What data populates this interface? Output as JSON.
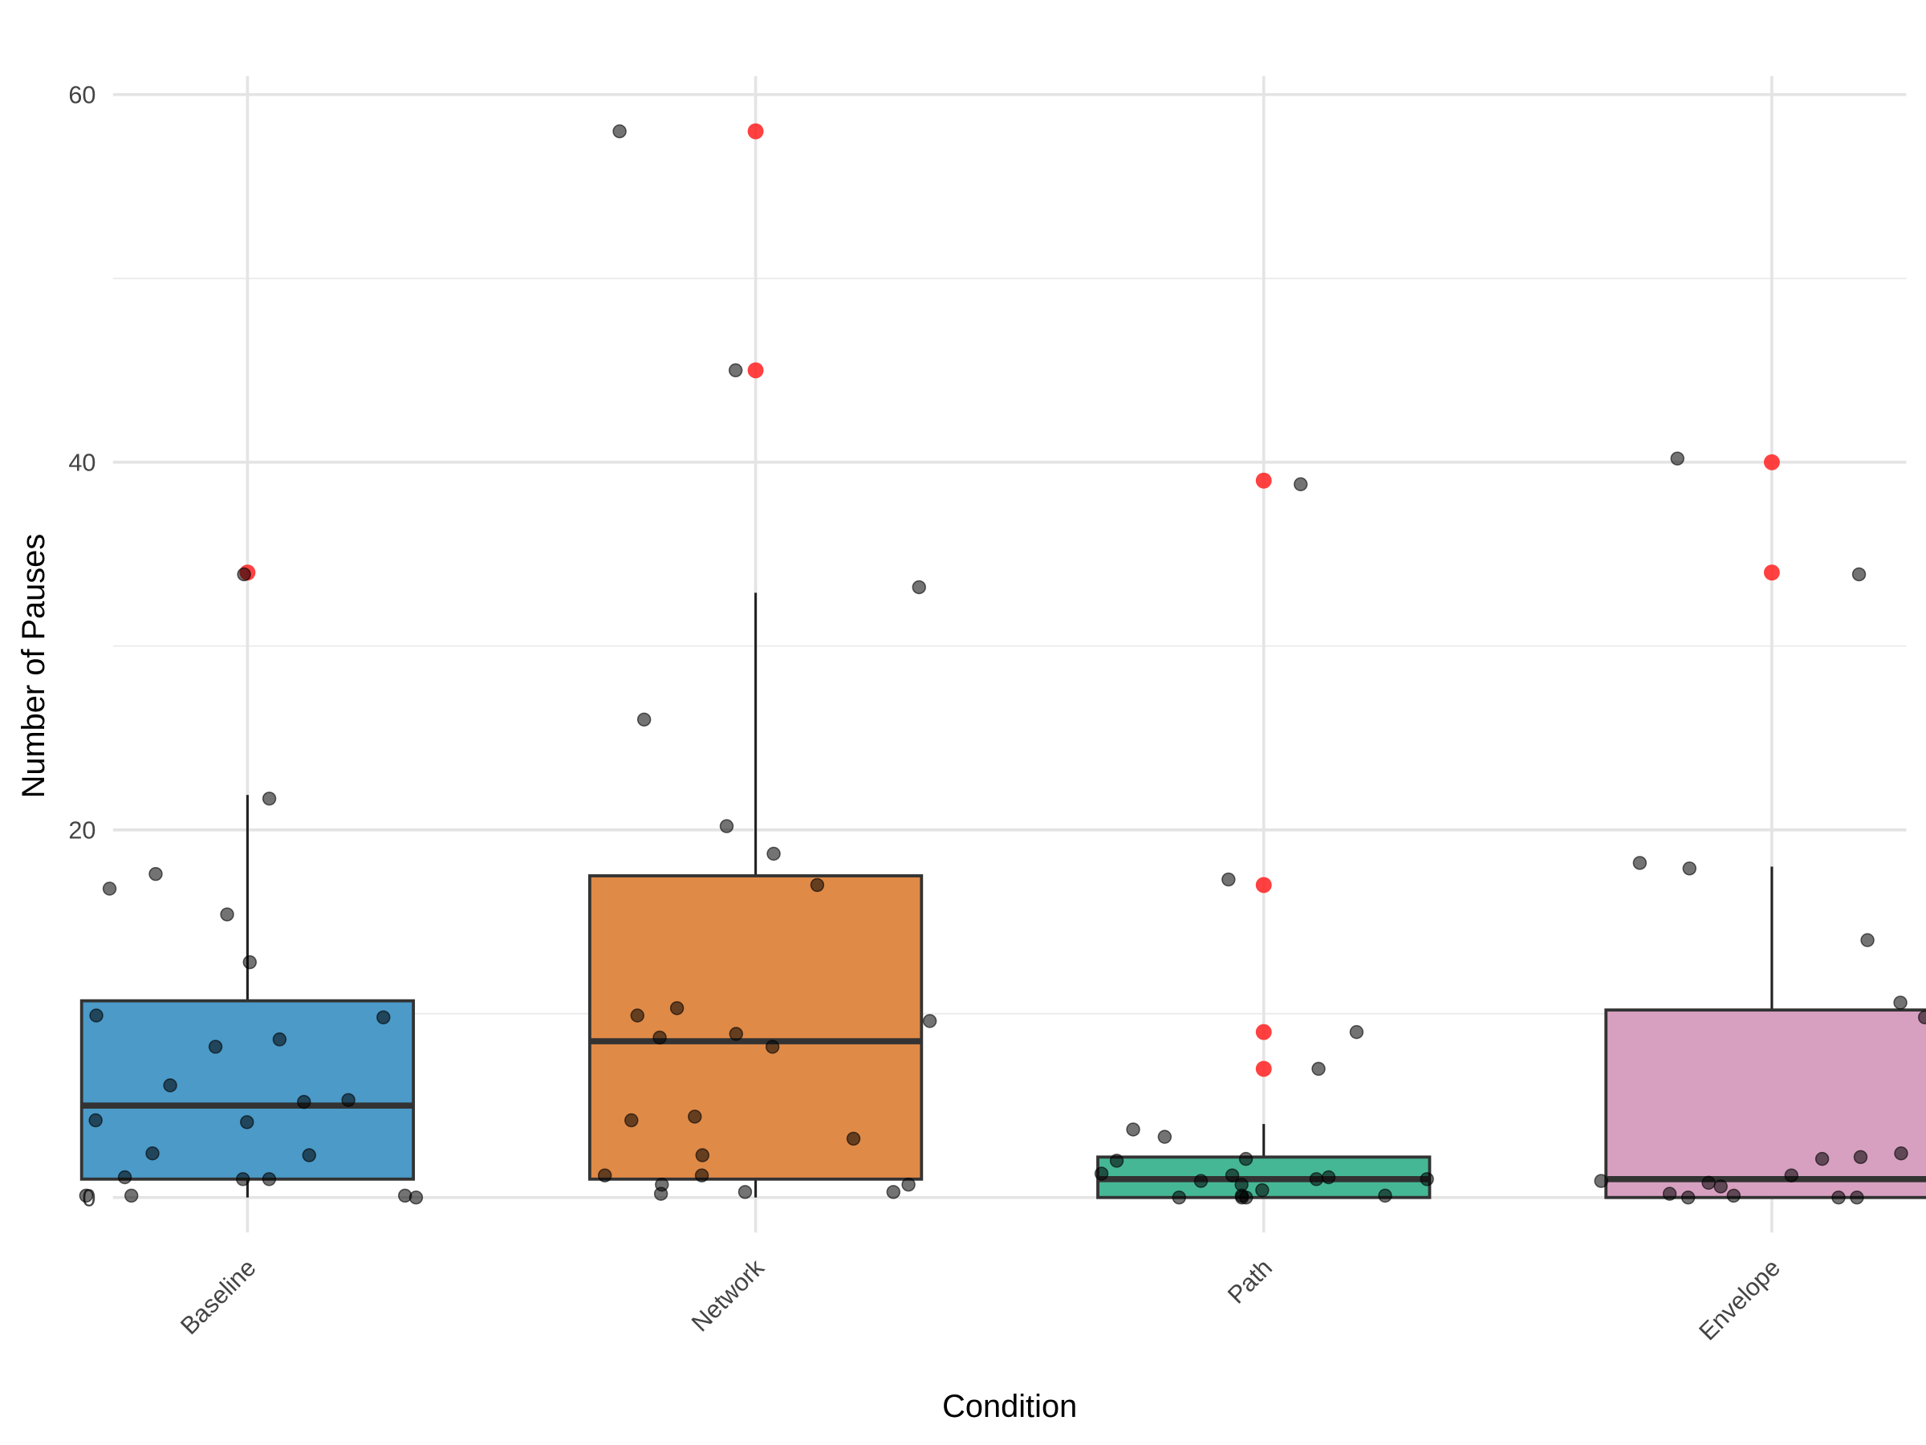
{
  "chart_data": {
    "type": "box",
    "x_label": "Condition",
    "y_label": "Number of Pauses",
    "categories": [
      "Baseline",
      "Network",
      "Path",
      "Envelope"
    ],
    "ylim": [
      -1.9,
      61.0
    ],
    "yticks": [
      0,
      20,
      40,
      60
    ],
    "minor_yticks": [
      10,
      30,
      50
    ],
    "grid": true,
    "boxes": [
      {
        "color": "#4b9ac8",
        "whislo": 0,
        "q1": 1.0,
        "med": 5.0,
        "q3": 10.7,
        "whishi": 21.9,
        "fliers": [
          34
        ]
      },
      {
        "color": "#e08a47",
        "whislo": 0,
        "q1": 1.0,
        "med": 8.5,
        "q3": 17.5,
        "whishi": 32.9,
        "fliers": [
          45,
          58
        ]
      },
      {
        "color": "#45b795",
        "whislo": 0,
        "q1": 0,
        "med": 1.0,
        "q3": 2.2,
        "whishi": 4.0,
        "fliers": [
          39,
          17,
          9,
          7
        ]
      },
      {
        "color": "#d8a0c0",
        "whislo": 0,
        "q1": 0,
        "med": 1.0,
        "q3": 10.2,
        "whishi": 18.0,
        "fliers": [
          40,
          34
        ]
      }
    ],
    "flier_color": "#ff2020",
    "point_color": "#000000",
    "points": [
      [
        33.9,
        21.7,
        16.8,
        17.6,
        15.4,
        12.8,
        9.9,
        9.8,
        8.6,
        8.2,
        6.1,
        5.3,
        5.2,
        4.2,
        4.1,
        2.4,
        2.3,
        1.1,
        1.0,
        1.0,
        0.1,
        0.1,
        0.1,
        0
      ],
      [
        58,
        45,
        33.2,
        26,
        20.2,
        18.7,
        17.0,
        10.3,
        9.9,
        9.6,
        8.9,
        8.7,
        8.2,
        4.4,
        4.2,
        3.2,
        2.3,
        1.2,
        1.2,
        0.7,
        0.7,
        0.3,
        0.3,
        0.2
      ],
      [
        38.8,
        17.3,
        9,
        7,
        3.7,
        3.3,
        2.1,
        2.0,
        1.3,
        1.2,
        1.1,
        1.0,
        1.0,
        0.9,
        0.7,
        0.4,
        0.1,
        0.1,
        0,
        0,
        0
      ],
      [
        40.2,
        33.9,
        18.2,
        17.9,
        14.0,
        10.6,
        10.2,
        9.8,
        2.4,
        2.2,
        2.1,
        1.2,
        0.9,
        0.8,
        0.6,
        0.2,
        0.1,
        0,
        0,
        0,
        0
      ]
    ]
  }
}
